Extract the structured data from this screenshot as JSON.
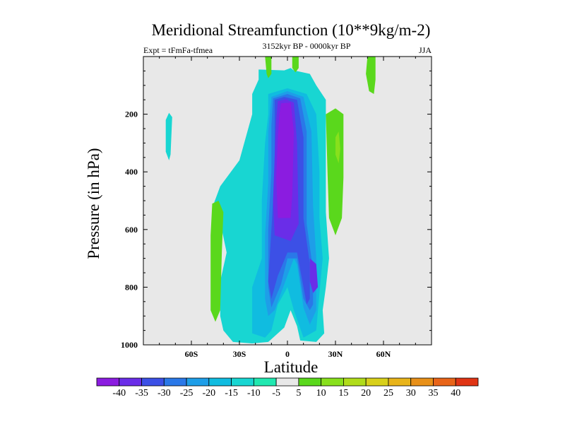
{
  "chart_data": {
    "type": "heatmap",
    "title": "Meridional Streamfunction (10**9kg/m-2)",
    "left_subtitle": "Expt = tFmFa-tfmea",
    "center_subtitle": "3152kyr BP - 0000kyr BP",
    "right_subtitle": "JJA",
    "xlabel": "Latitude",
    "ylabel": "Pressure (in hPa)",
    "xlim": [
      -90,
      90
    ],
    "ylim": [
      1000,
      0
    ],
    "x_ticks": [
      {
        "value": -60,
        "label": "60S"
      },
      {
        "value": -30,
        "label": "30S"
      },
      {
        "value": 0,
        "label": "0"
      },
      {
        "value": 30,
        "label": "30N"
      },
      {
        "value": 60,
        "label": "60N"
      }
    ],
    "y_ticks": [
      {
        "value": 200,
        "label": "200"
      },
      {
        "value": 400,
        "label": "400"
      },
      {
        "value": 600,
        "label": "600"
      },
      {
        "value": 800,
        "label": "800"
      },
      {
        "value": 1000,
        "label": "1000"
      }
    ],
    "background_color": "#e8e8e8",
    "colorbar": {
      "labels": [
        "-40",
        "-35",
        "-30",
        "-25",
        "-20",
        "-15",
        "-10",
        "-5",
        "5",
        "10",
        "15",
        "20",
        "25",
        "30",
        "35",
        "40"
      ],
      "colors": [
        "#8b1ce0",
        "#6a2de8",
        "#3c50e6",
        "#2a78e8",
        "#1e9ee8",
        "#10bce0",
        "#18d6d2",
        "#20e8b0",
        "#e8e8e8",
        "#5ad81c",
        "#88e01c",
        "#b0dc1a",
        "#d8d01a",
        "#e8b41a",
        "#e89018",
        "#e86418",
        "#e03414"
      ]
    },
    "regions": [
      {
        "level": -10,
        "polygon": [
          [
            -18,
            45
          ],
          [
            -2,
            48
          ],
          [
            2,
            40
          ],
          [
            4,
            48
          ],
          [
            14,
            60
          ],
          [
            18,
            100
          ],
          [
            24,
            150
          ],
          [
            24,
            400
          ],
          [
            24,
            480
          ],
          [
            24,
            540
          ],
          [
            26,
            700
          ],
          [
            24,
            800
          ],
          [
            22,
            880
          ],
          [
            23,
            960
          ],
          [
            18,
            990
          ],
          [
            8,
            985
          ],
          [
            6,
            935
          ],
          [
            2,
            880
          ],
          [
            -2,
            940
          ],
          [
            -12,
            990
          ],
          [
            -22,
            995
          ],
          [
            -34,
            990
          ],
          [
            -40,
            950
          ],
          [
            -42,
            900
          ],
          [
            -42,
            780
          ],
          [
            -38,
            680
          ],
          [
            -41,
            600
          ],
          [
            -46,
            510
          ],
          [
            -42,
            450
          ],
          [
            -30,
            360
          ],
          [
            -22,
            200
          ],
          [
            -22,
            130
          ],
          [
            -18,
            80
          ]
        ]
      },
      {
        "level": -10,
        "polygon": [
          [
            -76,
            220
          ],
          [
            -74,
            195
          ],
          [
            -72,
            210
          ],
          [
            -73,
            340
          ],
          [
            -74,
            360
          ],
          [
            -76,
            330
          ]
        ]
      },
      {
        "level": -15,
        "polygon": [
          [
            -12,
            130
          ],
          [
            0,
            110
          ],
          [
            12,
            130
          ],
          [
            18,
            200
          ],
          [
            20,
            400
          ],
          [
            20,
            560
          ],
          [
            22,
            700
          ],
          [
            20,
            820
          ],
          [
            18,
            950
          ],
          [
            10,
            975
          ],
          [
            4,
            880
          ],
          [
            0,
            800
          ],
          [
            -6,
            860
          ],
          [
            -10,
            950
          ],
          [
            -14,
            975
          ],
          [
            -22,
            960
          ],
          [
            -22,
            800
          ],
          [
            -16,
            700
          ],
          [
            -16,
            500
          ],
          [
            -14,
            300
          ],
          [
            -12,
            200
          ]
        ]
      },
      {
        "level": -20,
        "polygon": [
          [
            -10,
            140
          ],
          [
            0,
            120
          ],
          [
            10,
            140
          ],
          [
            15,
            260
          ],
          [
            16,
            520
          ],
          [
            18,
            700
          ],
          [
            18,
            880
          ],
          [
            14,
            930
          ],
          [
            10,
            870
          ],
          [
            6,
            720
          ],
          [
            4,
            700
          ],
          [
            -2,
            790
          ],
          [
            -8,
            880
          ],
          [
            -12,
            900
          ],
          [
            -14,
            840
          ],
          [
            -14,
            620
          ],
          [
            -12,
            440
          ],
          [
            -12,
            260
          ]
        ]
      },
      {
        "level": -25,
        "polygon": [
          [
            -9,
            145
          ],
          [
            0,
            130
          ],
          [
            8,
            145
          ],
          [
            12,
            260
          ],
          [
            12,
            580
          ],
          [
            16,
            740
          ],
          [
            16,
            860
          ],
          [
            14,
            880
          ],
          [
            10,
            840
          ],
          [
            6,
            700
          ],
          [
            0,
            700
          ],
          [
            -4,
            790
          ],
          [
            -10,
            870
          ],
          [
            -12,
            800
          ],
          [
            -12,
            600
          ],
          [
            -10,
            400
          ],
          [
            -10,
            240
          ]
        ]
      },
      {
        "level": -30,
        "polygon": [
          [
            -8,
            150
          ],
          [
            -2,
            140
          ],
          [
            6,
            150
          ],
          [
            10,
            280
          ],
          [
            10,
            560
          ],
          [
            14,
            720
          ],
          [
            14,
            840
          ],
          [
            12,
            860
          ],
          [
            10,
            800
          ],
          [
            6,
            680
          ],
          [
            0,
            680
          ],
          [
            -6,
            760
          ],
          [
            -10,
            840
          ],
          [
            -12,
            780
          ],
          [
            -10,
            600
          ],
          [
            -8,
            400
          ],
          [
            -8,
            250
          ]
        ]
      },
      {
        "level": -35,
        "polygon": [
          [
            -6,
            155
          ],
          [
            -1,
            148
          ],
          [
            4,
            160
          ],
          [
            6,
            300
          ],
          [
            7,
            580
          ],
          [
            2,
            640
          ],
          [
            -8,
            620
          ],
          [
            -9,
            500
          ],
          [
            -8,
            350
          ],
          [
            -7,
            220
          ]
        ]
      },
      {
        "level": -35,
        "polygon": [
          [
            14,
            700
          ],
          [
            18,
            720
          ],
          [
            19,
            800
          ],
          [
            16,
            820
          ],
          [
            14,
            780
          ]
        ]
      },
      {
        "level": -40,
        "polygon": [
          [
            -4,
            162
          ],
          [
            2,
            160
          ],
          [
            4,
            260
          ],
          [
            3,
            480
          ],
          [
            2,
            560
          ],
          [
            -6,
            560
          ],
          [
            -7,
            420
          ],
          [
            -6,
            280
          ],
          [
            -5,
            200
          ]
        ]
      },
      {
        "level": 5,
        "polygon": [
          [
            -47,
            510
          ],
          [
            -43,
            500
          ],
          [
            -40,
            540
          ],
          [
            -41,
            680
          ],
          [
            -42,
            880
          ],
          [
            -45,
            920
          ],
          [
            -48,
            880
          ],
          [
            -48,
            620
          ]
        ]
      },
      {
        "level": 5,
        "polygon": [
          [
            -14,
            0
          ],
          [
            -10,
            0
          ],
          [
            -10,
            60
          ],
          [
            -12,
            75
          ],
          [
            -13,
            60
          ]
        ]
      },
      {
        "level": 5,
        "polygon": [
          [
            3,
            0
          ],
          [
            7,
            0
          ],
          [
            7,
            40
          ],
          [
            5,
            55
          ],
          [
            3,
            40
          ]
        ]
      },
      {
        "level": 5,
        "polygon": [
          [
            24,
            200
          ],
          [
            30,
            180
          ],
          [
            35,
            200
          ],
          [
            35,
            420
          ],
          [
            34,
            560
          ],
          [
            30,
            620
          ],
          [
            26,
            560
          ],
          [
            25,
            400
          ]
        ]
      },
      {
        "level": 5,
        "polygon": [
          [
            50,
            0
          ],
          [
            55,
            0
          ],
          [
            55,
            80
          ],
          [
            54,
            130
          ],
          [
            51,
            120
          ],
          [
            49,
            60
          ]
        ]
      },
      {
        "level": 10,
        "polygon": [
          [
            30,
            280
          ],
          [
            32,
            260
          ],
          [
            33,
            320
          ],
          [
            32,
            370
          ],
          [
            30,
            340
          ]
        ]
      }
    ]
  }
}
